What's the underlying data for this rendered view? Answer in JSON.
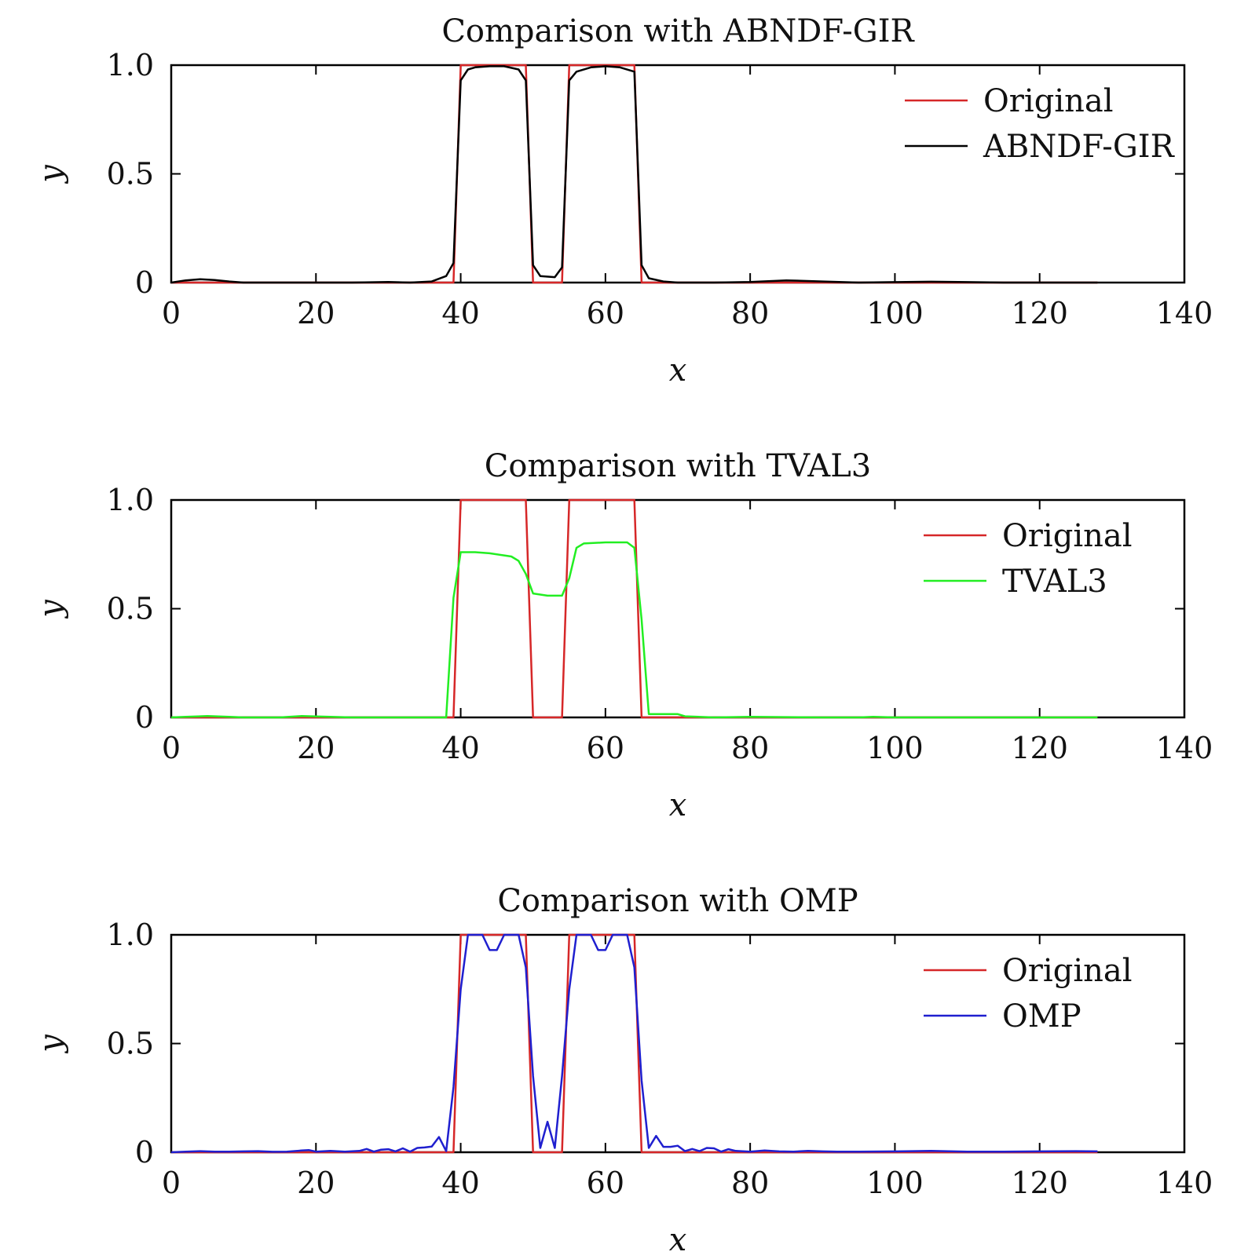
{
  "chart_data": [
    {
      "type": "line",
      "title": "Comparison with ABNDF-GIR",
      "xlabel": "x",
      "ylabel": "y",
      "xlim": [
        0,
        140
      ],
      "ylim": [
        0,
        1.0
      ],
      "xticks": [
        "0",
        "20",
        "40",
        "60",
        "80",
        "100",
        "120",
        "140"
      ],
      "yticks": [
        "0",
        "0.5",
        "1.0"
      ],
      "legend_position": "top-right",
      "series": [
        {
          "name": "Original",
          "color": "#d62728",
          "x": [
            0,
            39,
            40,
            49,
            50,
            54,
            55,
            64,
            65,
            128
          ],
          "y": [
            0,
            0,
            1,
            1,
            0,
            0,
            1,
            1,
            0,
            0
          ]
        },
        {
          "name": "ABNDF-GIR",
          "color": "#000000",
          "x": [
            0,
            2,
            4,
            6,
            8,
            10,
            15,
            20,
            25,
            30,
            33,
            36,
            38,
            39,
            40,
            41,
            42,
            44,
            46,
            48,
            49,
            50,
            51,
            53,
            54,
            55,
            56,
            58,
            60,
            62,
            64,
            65,
            66,
            68,
            70,
            75,
            80,
            85,
            90,
            95,
            100,
            105,
            110,
            115,
            120,
            128
          ],
          "y": [
            0,
            0.01,
            0.015,
            0.012,
            0.005,
            0,
            0,
            0,
            0,
            0.003,
            0,
            0.005,
            0.03,
            0.09,
            0.93,
            0.98,
            0.99,
            0.995,
            0.995,
            0.98,
            0.93,
            0.08,
            0.03,
            0.025,
            0.07,
            0.93,
            0.97,
            0.99,
            0.995,
            0.99,
            0.97,
            0.08,
            0.02,
            0.005,
            0,
            0,
            0.003,
            0.01,
            0.005,
            0,
            0.002,
            0.004,
            0.002,
            0,
            0,
            0
          ]
        }
      ]
    },
    {
      "type": "line",
      "title": "Comparison with TVAL3",
      "xlabel": "x",
      "ylabel": "y",
      "xlim": [
        0,
        140
      ],
      "ylim": [
        0,
        1.0
      ],
      "xticks": [
        "0",
        "20",
        "40",
        "60",
        "80",
        "100",
        "120",
        "140"
      ],
      "yticks": [
        "0",
        "0.5",
        "1.0"
      ],
      "legend_position": "top-right",
      "series": [
        {
          "name": "Original",
          "color": "#d62728",
          "x": [
            0,
            39,
            40,
            49,
            50,
            54,
            55,
            64,
            65,
            128
          ],
          "y": [
            0,
            0,
            1,
            1,
            0,
            0,
            1,
            1,
            0,
            0
          ]
        },
        {
          "name": "TVAL3",
          "color": "#22ee22",
          "x": [
            0,
            2,
            5,
            8,
            10,
            15,
            18,
            22,
            25,
            30,
            35,
            37,
            38,
            39,
            40,
            42,
            44,
            46,
            47,
            48,
            49,
            50,
            52,
            54,
            55,
            56,
            57,
            60,
            62,
            63,
            64,
            65,
            66,
            68,
            70,
            71,
            75,
            80,
            90,
            95,
            97,
            100,
            110,
            128
          ],
          "y": [
            0,
            0.003,
            0.006,
            0.003,
            0,
            0,
            0.006,
            0.003,
            0,
            0,
            0,
            0,
            0,
            0.55,
            0.76,
            0.76,
            0.755,
            0.745,
            0.74,
            0.72,
            0.66,
            0.57,
            0.56,
            0.56,
            0.64,
            0.78,
            0.8,
            0.805,
            0.805,
            0.805,
            0.78,
            0.45,
            0.015,
            0.015,
            0.015,
            0.005,
            0,
            0.003,
            0,
            0,
            0.003,
            0,
            0,
            0
          ]
        }
      ]
    },
    {
      "type": "line",
      "title": "Comparison with OMP",
      "xlabel": "x",
      "ylabel": "y",
      "xlim": [
        0,
        140
      ],
      "ylim": [
        0,
        1.0
      ],
      "xticks": [
        "0",
        "20",
        "40",
        "60",
        "80",
        "100",
        "120",
        "140"
      ],
      "yticks": [
        "0",
        "0.5",
        "1.0"
      ],
      "legend_position": "top-right",
      "series": [
        {
          "name": "Original",
          "color": "#d62728",
          "x": [
            0,
            39,
            40,
            49,
            50,
            54,
            55,
            64,
            65,
            128
          ],
          "y": [
            0,
            0,
            1,
            1,
            0,
            0,
            1,
            1,
            0,
            0
          ]
        },
        {
          "name": "OMP",
          "color": "#1f1fcf",
          "x": [
            0,
            2,
            4,
            6,
            8,
            10,
            12,
            14,
            16,
            18,
            19,
            20,
            22,
            24,
            26,
            27,
            28,
            29,
            30,
            31,
            32,
            33,
            34,
            35,
            36,
            37,
            38,
            39,
            40,
            41,
            42,
            43,
            44,
            45,
            46,
            47,
            48,
            49,
            50,
            51,
            52,
            53,
            54,
            55,
            56,
            57,
            58,
            59,
            60,
            61,
            62,
            63,
            64,
            65,
            66,
            67,
            68,
            69,
            70,
            71,
            72,
            73,
            74,
            75,
            76,
            77,
            78,
            80,
            82,
            84,
            86,
            88,
            90,
            92,
            95,
            100,
            105,
            110,
            115,
            120,
            125,
            128
          ],
          "y": [
            0,
            0.003,
            0.005,
            0.003,
            0.003,
            0.004,
            0.005,
            0.002,
            0.003,
            0.008,
            0.01,
            0.003,
            0.006,
            0.003,
            0.006,
            0.015,
            0.003,
            0.012,
            0.014,
            0.004,
            0.018,
            0.003,
            0.02,
            0.022,
            0.026,
            0.07,
            0.005,
            0.3,
            0.75,
            1,
            1,
            1,
            0.93,
            0.93,
            1,
            1,
            1,
            0.85,
            0.35,
            0.02,
            0.14,
            0.02,
            0.35,
            0.75,
            1,
            1,
            1,
            0.93,
            0.93,
            1,
            1,
            1,
            0.85,
            0.33,
            0.02,
            0.075,
            0.025,
            0.025,
            0.03,
            0.005,
            0.015,
            0.005,
            0.02,
            0.018,
            0.003,
            0.014,
            0.006,
            0.003,
            0.008,
            0.004,
            0.003,
            0.006,
            0.004,
            0.003,
            0.003,
            0.004,
            0.006,
            0.003,
            0.003,
            0.004,
            0.005,
            0.004
          ]
        }
      ]
    }
  ]
}
